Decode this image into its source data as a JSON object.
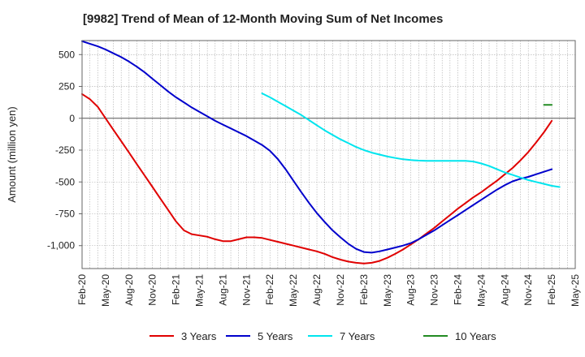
{
  "chart_data": {
    "type": "line",
    "title": "[9982]  Trend of Mean of 12-Month Moving Sum of Net Incomes",
    "xlabel": "",
    "ylabel": "Amount (million yen)",
    "ylim": [
      -1180,
      610
    ],
    "yticks": [
      500,
      250,
      0,
      -250,
      -500,
      -750,
      -1000
    ],
    "ytick_labels": [
      "500",
      "250",
      "0",
      "-250",
      "-500",
      "-750",
      "-1,000"
    ],
    "x_start": "2020-02",
    "x_end": "2025-05",
    "xtick_labels": [
      "Feb-20",
      "May-20",
      "Aug-20",
      "Nov-20",
      "Feb-21",
      "May-21",
      "Aug-21",
      "Nov-21",
      "Feb-22",
      "May-22",
      "Aug-22",
      "Nov-22",
      "Feb-23",
      "May-23",
      "Aug-23",
      "Nov-23",
      "Feb-24",
      "May-24",
      "Aug-24",
      "Nov-24",
      "Feb-25",
      "May-25"
    ],
    "grid": true,
    "legend_position": "bottom",
    "series": [
      {
        "name": "3 Years",
        "color": "#e00000",
        "points": [
          [
            "2020-02",
            190
          ],
          [
            "2020-03",
            150
          ],
          [
            "2020-04",
            90
          ],
          [
            "2020-05",
            0
          ],
          [
            "2020-06",
            -90
          ],
          [
            "2020-07",
            -180
          ],
          [
            "2020-08",
            -270
          ],
          [
            "2020-09",
            -360
          ],
          [
            "2020-10",
            -450
          ],
          [
            "2020-11",
            -540
          ],
          [
            "2020-12",
            -630
          ],
          [
            "2021-01",
            -720
          ],
          [
            "2021-02",
            -810
          ],
          [
            "2021-03",
            -880
          ],
          [
            "2021-04",
            -910
          ],
          [
            "2021-05",
            -920
          ],
          [
            "2021-06",
            -930
          ],
          [
            "2021-07",
            -950
          ],
          [
            "2021-08",
            -965
          ],
          [
            "2021-09",
            -965
          ],
          [
            "2021-10",
            -950
          ],
          [
            "2021-11",
            -935
          ],
          [
            "2021-12",
            -935
          ],
          [
            "2022-01",
            -940
          ],
          [
            "2022-02",
            -955
          ],
          [
            "2022-03",
            -970
          ],
          [
            "2022-04",
            -985
          ],
          [
            "2022-05",
            -1000
          ],
          [
            "2022-06",
            -1015
          ],
          [
            "2022-07",
            -1030
          ],
          [
            "2022-08",
            -1045
          ],
          [
            "2022-09",
            -1065
          ],
          [
            "2022-10",
            -1090
          ],
          [
            "2022-11",
            -1110
          ],
          [
            "2022-12",
            -1125
          ],
          [
            "2023-01",
            -1135
          ],
          [
            "2023-02",
            -1140
          ],
          [
            "2023-03",
            -1135
          ],
          [
            "2023-04",
            -1120
          ],
          [
            "2023-05",
            -1095
          ],
          [
            "2023-06",
            -1065
          ],
          [
            "2023-07",
            -1030
          ],
          [
            "2023-08",
            -990
          ],
          [
            "2023-09",
            -950
          ],
          [
            "2023-10",
            -905
          ],
          [
            "2023-11",
            -860
          ],
          [
            "2023-12",
            -810
          ],
          [
            "2024-01",
            -760
          ],
          [
            "2024-02",
            -710
          ],
          [
            "2024-03",
            -665
          ],
          [
            "2024-04",
            -620
          ],
          [
            "2024-05",
            -580
          ],
          [
            "2024-06",
            -535
          ],
          [
            "2024-07",
            -490
          ],
          [
            "2024-08",
            -440
          ],
          [
            "2024-09",
            -390
          ],
          [
            "2024-10",
            -330
          ],
          [
            "2024-11",
            -265
          ],
          [
            "2024-12",
            -190
          ],
          [
            "2025-01",
            -110
          ],
          [
            "2025-02",
            -20
          ]
        ]
      },
      {
        "name": "5 Years",
        "color": "#0000cc",
        "points": [
          [
            "2020-02",
            605
          ],
          [
            "2020-03",
            585
          ],
          [
            "2020-04",
            565
          ],
          [
            "2020-05",
            540
          ],
          [
            "2020-06",
            510
          ],
          [
            "2020-07",
            480
          ],
          [
            "2020-08",
            445
          ],
          [
            "2020-09",
            405
          ],
          [
            "2020-10",
            360
          ],
          [
            "2020-11",
            310
          ],
          [
            "2020-12",
            260
          ],
          [
            "2021-01",
            210
          ],
          [
            "2021-02",
            165
          ],
          [
            "2021-03",
            125
          ],
          [
            "2021-04",
            85
          ],
          [
            "2021-05",
            50
          ],
          [
            "2021-06",
            15
          ],
          [
            "2021-07",
            -20
          ],
          [
            "2021-08",
            -50
          ],
          [
            "2021-09",
            -80
          ],
          [
            "2021-10",
            -110
          ],
          [
            "2021-11",
            -140
          ],
          [
            "2021-12",
            -175
          ],
          [
            "2022-01",
            -210
          ],
          [
            "2022-02",
            -255
          ],
          [
            "2022-03",
            -320
          ],
          [
            "2022-04",
            -400
          ],
          [
            "2022-05",
            -490
          ],
          [
            "2022-06",
            -580
          ],
          [
            "2022-07",
            -665
          ],
          [
            "2022-08",
            -745
          ],
          [
            "2022-09",
            -815
          ],
          [
            "2022-10",
            -880
          ],
          [
            "2022-11",
            -935
          ],
          [
            "2022-12",
            -985
          ],
          [
            "2023-01",
            -1025
          ],
          [
            "2023-02",
            -1050
          ],
          [
            "2023-03",
            -1055
          ],
          [
            "2023-04",
            -1045
          ],
          [
            "2023-05",
            -1030
          ],
          [
            "2023-06",
            -1015
          ],
          [
            "2023-07",
            -1000
          ],
          [
            "2023-08",
            -980
          ],
          [
            "2023-09",
            -950
          ],
          [
            "2023-10",
            -915
          ],
          [
            "2023-11",
            -880
          ],
          [
            "2023-12",
            -840
          ],
          [
            "2024-01",
            -800
          ],
          [
            "2024-02",
            -760
          ],
          [
            "2024-03",
            -720
          ],
          [
            "2024-04",
            -680
          ],
          [
            "2024-05",
            -640
          ],
          [
            "2024-06",
            -600
          ],
          [
            "2024-07",
            -560
          ],
          [
            "2024-08",
            -525
          ],
          [
            "2024-09",
            -495
          ],
          [
            "2024-10",
            -475
          ],
          [
            "2024-11",
            -460
          ],
          [
            "2024-12",
            -440
          ],
          [
            "2025-01",
            -420
          ],
          [
            "2025-02",
            -400
          ]
        ]
      },
      {
        "name": "7 Years",
        "color": "#00e5ee",
        "points": [
          [
            "2022-01",
            195
          ],
          [
            "2022-02",
            165
          ],
          [
            "2022-03",
            130
          ],
          [
            "2022-04",
            95
          ],
          [
            "2022-05",
            60
          ],
          [
            "2022-06",
            25
          ],
          [
            "2022-07",
            -15
          ],
          [
            "2022-08",
            -55
          ],
          [
            "2022-09",
            -95
          ],
          [
            "2022-10",
            -130
          ],
          [
            "2022-11",
            -165
          ],
          [
            "2022-12",
            -195
          ],
          [
            "2023-01",
            -225
          ],
          [
            "2023-02",
            -250
          ],
          [
            "2023-03",
            -270
          ],
          [
            "2023-04",
            -285
          ],
          [
            "2023-05",
            -300
          ],
          [
            "2023-06",
            -312
          ],
          [
            "2023-07",
            -322
          ],
          [
            "2023-08",
            -328
          ],
          [
            "2023-09",
            -332
          ],
          [
            "2023-10",
            -334
          ],
          [
            "2023-11",
            -335
          ],
          [
            "2023-12",
            -335
          ],
          [
            "2024-01",
            -335
          ],
          [
            "2024-02",
            -335
          ],
          [
            "2024-03",
            -335
          ],
          [
            "2024-04",
            -340
          ],
          [
            "2024-05",
            -355
          ],
          [
            "2024-06",
            -375
          ],
          [
            "2024-07",
            -400
          ],
          [
            "2024-08",
            -425
          ],
          [
            "2024-09",
            -445
          ],
          [
            "2024-10",
            -465
          ],
          [
            "2024-11",
            -485
          ],
          [
            "2024-12",
            -500
          ],
          [
            "2025-01",
            -515
          ],
          [
            "2025-02",
            -530
          ],
          [
            "2025-03",
            -540
          ]
        ]
      },
      {
        "name": "10 Years",
        "color": "#228b22",
        "points": [
          [
            "2025-01",
            105
          ],
          [
            "2025-02",
            105
          ]
        ]
      }
    ]
  }
}
